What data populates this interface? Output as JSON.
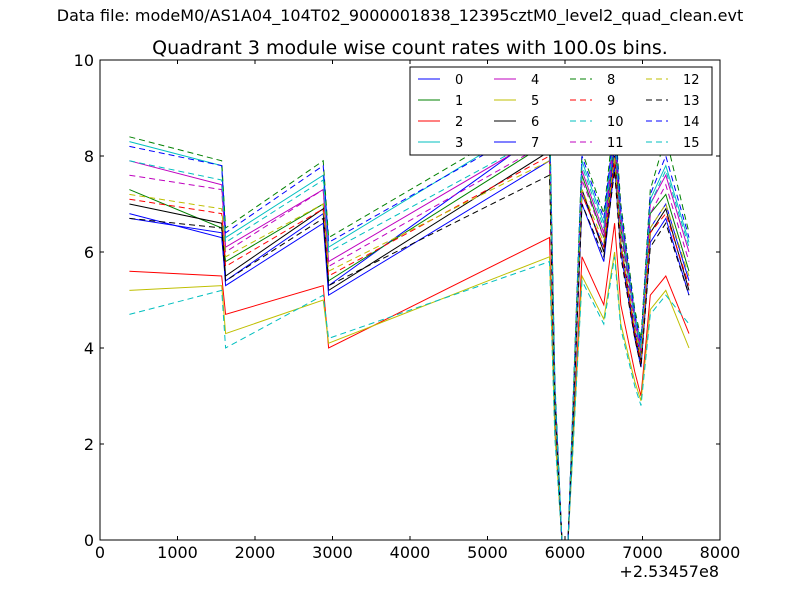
{
  "figure": {
    "suptitle": "Data file: modeM0/AS1A04_104T02_9000001838_12395cztM0_level2_quad_clean.evt"
  },
  "chart_data": {
    "type": "line",
    "title": "Quadrant 3 module wise count rates with 100.0s bins.",
    "xlabel": "",
    "ylabel": "",
    "x_offset_label": "+2.53457e8",
    "xlim": [
      0,
      8000
    ],
    "ylim": [
      0,
      10
    ],
    "xticks": [
      0,
      1000,
      2000,
      3000,
      4000,
      5000,
      6000,
      7000,
      8000
    ],
    "yticks": [
      0,
      2,
      4,
      6,
      8,
      10
    ],
    "xtick_labels": [
      "0",
      "1000",
      "2000",
      "3000",
      "4000",
      "5000",
      "6000",
      "7000",
      "8000"
    ],
    "ytick_labels": [
      "0",
      "2",
      "4",
      "6",
      "8",
      "10"
    ],
    "grid": false,
    "legend": {
      "location": "top-right",
      "columns": 4
    },
    "x": [
      380,
      1570,
      1620,
      2880,
      2950,
      5800,
      5870,
      5960,
      6040,
      6220,
      6500,
      6640,
      6720,
      6900,
      6980,
      7100,
      7300,
      7600
    ],
    "series": [
      {
        "name": "0",
        "color": "#0000ff",
        "dash": "solid",
        "values": [
          6.8,
          6.3,
          5.4,
          6.8,
          5.3,
          8.6,
          3.0,
          0.0,
          0.0,
          7.2,
          6.1,
          8.2,
          6.2,
          4.4,
          3.8,
          6.5,
          7.0,
          5.4
        ]
      },
      {
        "name": "1",
        "color": "#008000",
        "dash": "solid",
        "values": [
          7.3,
          6.5,
          5.8,
          7.0,
          5.4,
          8.3,
          3.1,
          0.0,
          0.0,
          7.6,
          6.3,
          8.4,
          6.5,
          4.6,
          3.9,
          6.8,
          7.2,
          5.6
        ]
      },
      {
        "name": "2",
        "color": "#ff0000",
        "dash": "solid",
        "values": [
          5.6,
          5.5,
          4.7,
          5.3,
          4.0,
          6.3,
          2.3,
          0.0,
          0.0,
          5.9,
          4.9,
          6.6,
          4.9,
          3.5,
          3.0,
          5.1,
          5.5,
          4.3
        ]
      },
      {
        "name": "3",
        "color": "#00bfbf",
        "dash": "solid",
        "values": [
          8.3,
          7.8,
          6.3,
          7.6,
          6.1,
          8.9,
          3.2,
          0.0,
          0.0,
          7.9,
          6.6,
          8.7,
          6.8,
          4.7,
          4.1,
          7.1,
          7.8,
          6.2
        ]
      },
      {
        "name": "4",
        "color": "#bf00bf",
        "dash": "solid",
        "values": [
          7.9,
          7.4,
          6.1,
          7.3,
          5.8,
          8.5,
          3.1,
          0.0,
          0.0,
          7.7,
          6.4,
          8.6,
          6.7,
          4.6,
          4.0,
          7.0,
          7.6,
          6.0
        ]
      },
      {
        "name": "5",
        "color": "#bfbf00",
        "dash": "solid",
        "values": [
          5.2,
          5.3,
          4.3,
          5.0,
          4.1,
          5.9,
          2.2,
          0.0,
          0.0,
          5.5,
          4.6,
          6.0,
          4.5,
          3.3,
          2.9,
          4.8,
          5.2,
          4.0
        ]
      },
      {
        "name": "6",
        "color": "#000000",
        "dash": "solid",
        "values": [
          7.0,
          6.6,
          5.5,
          6.9,
          5.2,
          8.1,
          2.9,
          0.0,
          0.0,
          7.3,
          6.0,
          8.0,
          6.2,
          4.3,
          3.7,
          6.4,
          6.9,
          5.2
        ]
      },
      {
        "name": "7",
        "color": "#0000ff",
        "dash": "solid",
        "values": [
          6.7,
          6.4,
          5.3,
          6.6,
          5.1,
          7.9,
          2.8,
          0.0,
          0.0,
          7.0,
          5.8,
          7.8,
          6.0,
          4.2,
          3.6,
          6.2,
          6.7,
          5.1
        ]
      },
      {
        "name": "8",
        "color": "#008000",
        "dash": "dashed",
        "values": [
          8.4,
          7.9,
          6.5,
          7.9,
          6.3,
          9.0,
          3.3,
          0.0,
          0.0,
          8.1,
          6.8,
          8.9,
          7.0,
          4.8,
          4.2,
          7.3,
          8.4,
          6.4
        ]
      },
      {
        "name": "9",
        "color": "#ff0000",
        "dash": "dashed",
        "values": [
          7.1,
          6.8,
          5.7,
          6.9,
          5.5,
          8.0,
          2.9,
          0.0,
          0.0,
          7.2,
          6.1,
          7.9,
          6.1,
          4.3,
          3.7,
          6.4,
          6.8,
          5.3
        ]
      },
      {
        "name": "10",
        "color": "#00bfbf",
        "dash": "dashed",
        "values": [
          4.7,
          5.2,
          4.0,
          5.1,
          4.2,
          5.8,
          2.1,
          0.0,
          0.0,
          5.4,
          4.5,
          5.9,
          4.4,
          3.2,
          2.8,
          4.7,
          5.1,
          4.5
        ]
      },
      {
        "name": "11",
        "color": "#bf00bf",
        "dash": "dashed",
        "values": [
          7.6,
          7.3,
          6.0,
          7.3,
          5.7,
          8.3,
          3.0,
          0.0,
          0.0,
          7.5,
          6.3,
          8.4,
          6.4,
          4.5,
          3.9,
          6.8,
          7.4,
          5.8
        ]
      },
      {
        "name": "12",
        "color": "#bfbf00",
        "dash": "dashed",
        "values": [
          7.2,
          6.9,
          5.9,
          7.0,
          5.6,
          7.9,
          2.9,
          0.0,
          0.0,
          7.3,
          6.2,
          8.0,
          6.2,
          4.4,
          3.8,
          6.5,
          7.0,
          5.5
        ]
      },
      {
        "name": "13",
        "color": "#000000",
        "dash": "dashed",
        "values": [
          6.7,
          6.5,
          5.4,
          6.7,
          5.3,
          7.6,
          2.8,
          0.0,
          0.0,
          7.0,
          5.9,
          7.7,
          5.9,
          4.2,
          3.6,
          6.1,
          6.6,
          5.1
        ]
      },
      {
        "name": "14",
        "color": "#0000ff",
        "dash": "dashed",
        "values": [
          8.2,
          7.8,
          6.4,
          7.8,
          6.2,
          8.8,
          3.2,
          0.0,
          0.0,
          8.0,
          6.7,
          8.7,
          6.9,
          4.7,
          4.1,
          7.2,
          8.0,
          6.3
        ]
      },
      {
        "name": "15",
        "color": "#00bfbf",
        "dash": "dashed",
        "values": [
          7.9,
          7.5,
          6.2,
          7.5,
          6.0,
          8.5,
          3.1,
          0.0,
          0.0,
          7.8,
          6.5,
          8.5,
          6.6,
          4.6,
          4.0,
          7.0,
          7.7,
          6.1
        ]
      }
    ]
  }
}
